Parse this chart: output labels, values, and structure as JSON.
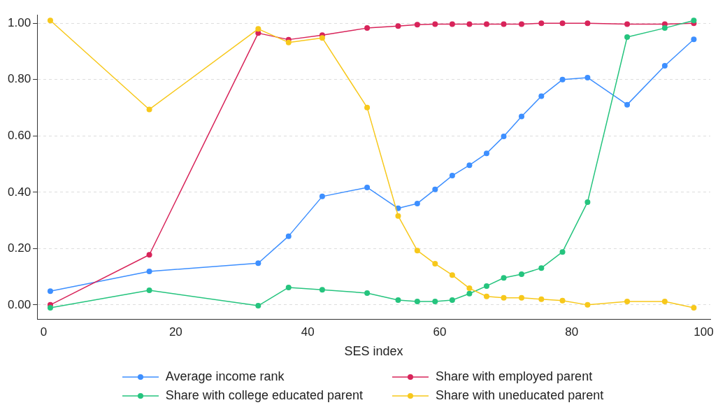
{
  "chart_data": {
    "type": "line",
    "xlabel": "SES index",
    "x": [
      1,
      16,
      32.5,
      37.1,
      42.2,
      49,
      53.7,
      56.6,
      59.3,
      61.9,
      64.5,
      67.1,
      69.7,
      72.4,
      75.4,
      78.6,
      82.4,
      88.4,
      94.1,
      98.5
    ],
    "series": [
      {
        "name": "Average income rank",
        "color": "#3d8fff",
        "values": [
          0.049,
          0.119,
          0.148,
          0.244,
          0.385,
          0.417,
          0.343,
          0.36,
          0.41,
          0.459,
          0.496,
          0.538,
          0.598,
          0.669,
          0.741,
          0.8,
          0.807,
          0.711,
          0.849,
          0.943
        ]
      },
      {
        "name": "Share with employed parent",
        "color": "#d8245a",
        "values": [
          0,
          0.178,
          0.965,
          0.942,
          0.958,
          0.983,
          0.99,
          0.995,
          0.997,
          0.997,
          0.997,
          0.997,
          0.997,
          0.997,
          1,
          1,
          1,
          0.997,
          0.997,
          1
        ]
      },
      {
        "name": "Share with college educated parent",
        "color": "#25c47e",
        "values": [
          -0.01,
          0.052,
          -0.003,
          0.062,
          0.054,
          0.042,
          0.017,
          0.012,
          0.012,
          0.017,
          0.04,
          0.067,
          0.096,
          0.109,
          0.131,
          0.188,
          0.365,
          0.951,
          0.983,
          1.01
        ]
      },
      {
        "name": "Share with uneducated parent",
        "color": "#f7c81b",
        "values": [
          1.01,
          0.694,
          0.98,
          0.932,
          0.948,
          0.701,
          0.316,
          0.193,
          0.146,
          0.106,
          0.059,
          0.03,
          0.025,
          0.025,
          0.02,
          0.015,
          0,
          0.012,
          0.012,
          -0.01
        ]
      }
    ],
    "xlim": [
      -1,
      101
    ],
    "xticks": [
      0,
      20,
      40,
      60,
      80,
      100
    ],
    "ylim": [
      -0.05,
      1.03
    ],
    "yticks": [
      {
        "value": 0,
        "label": "0.00"
      },
      {
        "value": 0.2,
        "label": "0.20"
      },
      {
        "value": 0.4,
        "label": "0.40"
      },
      {
        "value": 0.6,
        "label": "0.60"
      },
      {
        "value": 0.8,
        "label": "0.80"
      },
      {
        "value": 1,
        "label": "1.00"
      }
    ],
    "grid": "y",
    "legend": "bottom",
    "marker": "circle",
    "line_style": "solid"
  }
}
